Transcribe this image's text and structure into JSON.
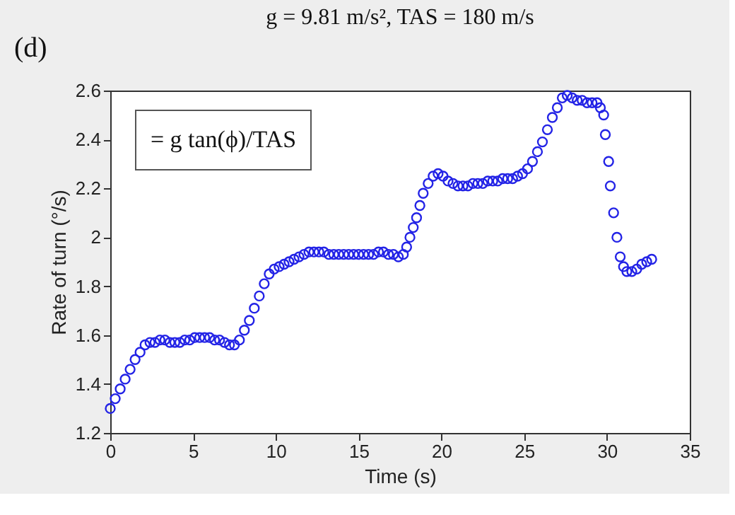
{
  "chart_data": {
    "type": "scatter",
    "title": "g = 9.81 m/s², TAS = 180 m/s",
    "xlabel": "Time (s)",
    "ylabel": "Rate of turn (°/s)",
    "annotations": [
      "(d)",
      "= g tan(ϕ)/TAS"
    ],
    "marker": "circle",
    "grid": false,
    "xlim": [
      0,
      35
    ],
    "xticks": [
      0,
      5,
      10,
      15,
      20,
      25,
      30,
      35
    ],
    "ylim": [
      1.2,
      2.6
    ],
    "yticks": [
      1.2,
      1.4,
      1.6,
      1.8,
      {
        "value": 2,
        "label": "2"
      },
      2.2,
      2.4,
      2.6
    ],
    "series": [
      {
        "color": "#2323e6",
        "x": [
          0,
          0.3,
          0.6,
          0.9,
          1.2,
          1.5,
          1.8,
          2.1,
          2.4,
          2.7,
          3.0,
          3.3,
          3.6,
          3.9,
          4.2,
          4.5,
          4.8,
          5.1,
          5.4,
          5.7,
          6.0,
          6.3,
          6.6,
          6.9,
          7.2,
          7.5,
          7.8,
          8.1,
          8.4,
          8.7,
          9.0,
          9.3,
          9.6,
          9.9,
          10.2,
          10.5,
          10.8,
          11.1,
          11.4,
          11.7,
          12.0,
          12.3,
          12.6,
          12.9,
          13.2,
          13.5,
          13.8,
          14.1,
          14.4,
          14.7,
          15.0,
          15.3,
          15.6,
          15.9,
          16.2,
          16.5,
          16.8,
          17.1,
          17.4,
          17.7,
          17.9,
          18.1,
          18.3,
          18.5,
          18.7,
          18.9,
          19.2,
          19.5,
          19.8,
          20.1,
          20.4,
          20.7,
          21.0,
          21.3,
          21.6,
          21.9,
          22.2,
          22.5,
          22.8,
          23.1,
          23.4,
          23.7,
          24.0,
          24.3,
          24.6,
          24.9,
          25.2,
          25.5,
          25.8,
          26.1,
          26.4,
          26.7,
          27.0,
          27.3,
          27.6,
          27.9,
          28.2,
          28.5,
          28.8,
          29.1,
          29.4,
          29.6,
          29.8,
          29.9,
          30.1,
          30.2,
          30.4,
          30.6,
          30.8,
          31.0,
          31.2,
          31.5,
          31.8,
          32.1,
          32.4,
          32.7
        ],
        "values": [
          1.3,
          1.34,
          1.38,
          1.42,
          1.46,
          1.5,
          1.53,
          1.56,
          1.57,
          1.57,
          1.58,
          1.58,
          1.57,
          1.57,
          1.57,
          1.58,
          1.58,
          1.59,
          1.59,
          1.59,
          1.59,
          1.58,
          1.58,
          1.57,
          1.56,
          1.56,
          1.58,
          1.62,
          1.66,
          1.71,
          1.76,
          1.81,
          1.85,
          1.87,
          1.88,
          1.89,
          1.9,
          1.91,
          1.92,
          1.93,
          1.94,
          1.94,
          1.94,
          1.94,
          1.93,
          1.93,
          1.93,
          1.93,
          1.93,
          1.93,
          1.93,
          1.93,
          1.93,
          1.93,
          1.94,
          1.94,
          1.93,
          1.93,
          1.92,
          1.93,
          1.96,
          2.0,
          2.04,
          2.08,
          2.13,
          2.18,
          2.22,
          2.25,
          2.26,
          2.25,
          2.23,
          2.22,
          2.21,
          2.21,
          2.21,
          2.22,
          2.22,
          2.22,
          2.23,
          2.23,
          2.23,
          2.24,
          2.24,
          2.24,
          2.25,
          2.26,
          2.28,
          2.31,
          2.35,
          2.39,
          2.44,
          2.49,
          2.53,
          2.57,
          2.58,
          2.57,
          2.56,
          2.56,
          2.55,
          2.55,
          2.55,
          2.53,
          2.5,
          2.42,
          2.31,
          2.21,
          2.1,
          2.0,
          1.92,
          1.88,
          1.86,
          1.86,
          1.87,
          1.89,
          1.9,
          1.91
        ]
      }
    ]
  }
}
